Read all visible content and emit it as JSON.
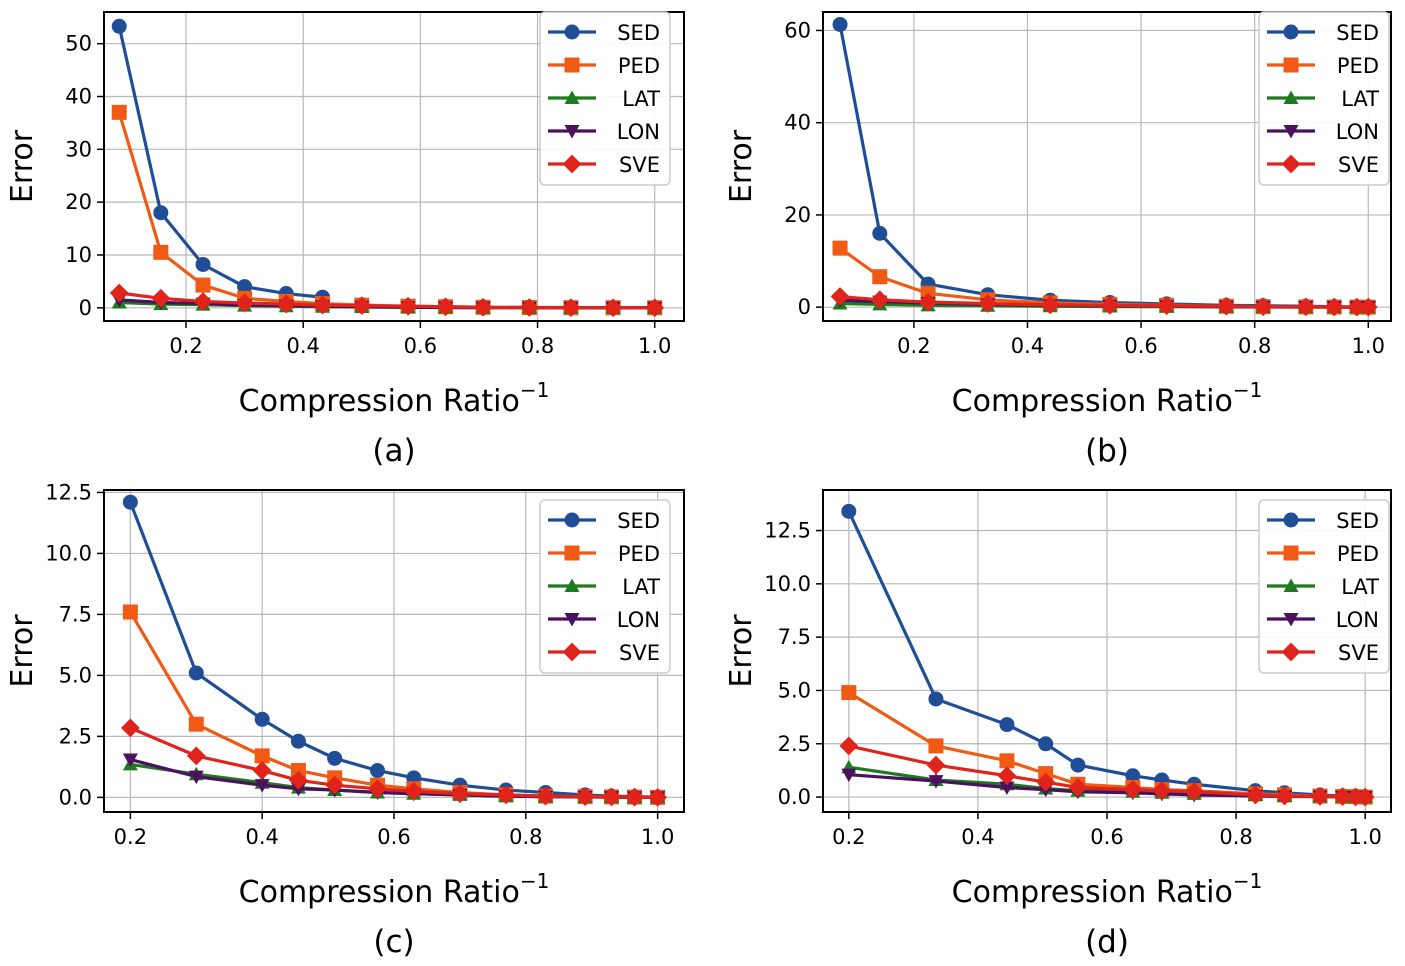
{
  "colors": {
    "SED": "#1f4e96",
    "PED": "#f05a14",
    "LAT": "#1e7a1e",
    "LON": "#4b1060",
    "SVE": "#e0241c"
  },
  "markers": {
    "SED": "circle",
    "PED": "square",
    "LAT": "triangle-up",
    "LON": "triangle-down",
    "SVE": "diamond"
  },
  "chart_data": [
    {
      "type": "line",
      "caption": "(a)",
      "xlabel": "Compression Ratio",
      "xlabel_sup": "−1",
      "ylabel": "Error",
      "xlim": [
        0.06,
        1.05
      ],
      "ylim": [
        -2.5,
        56
      ],
      "xticks": [
        0.2,
        0.4,
        0.6,
        0.8,
        1.0
      ],
      "xtick_labels": [
        "0.2",
        "0.4",
        "0.6",
        "0.8",
        "1.0"
      ],
      "yticks": [
        0,
        10,
        20,
        30,
        40,
        50
      ],
      "ytick_labels": [
        "0",
        "10",
        "20",
        "30",
        "40",
        "50"
      ],
      "grid": true,
      "legend": "top-right",
      "series": [
        {
          "name": "SED",
          "x": [
            0.086,
            0.157,
            0.229,
            0.3,
            0.371,
            0.433
          ],
          "y": [
            53.3,
            18,
            8.2,
            4,
            2.7,
            2
          ]
        },
        {
          "name": "PED",
          "x": [
            0.086,
            0.157,
            0.229,
            0.3,
            0.371,
            0.433,
            0.5,
            0.579,
            0.643,
            0.707,
            0.786,
            0.857,
            0.929,
            1.0
          ],
          "y": [
            37,
            10.5,
            4.3,
            1.8,
            1.2,
            0.8,
            0.5,
            0.3,
            0.2,
            0.1,
            0.05,
            0.03,
            0.02,
            0.01
          ]
        },
        {
          "name": "LAT",
          "x": [
            0.086,
            0.157,
            0.229,
            0.3,
            0.371,
            0.433,
            0.5,
            0.579,
            0.643,
            0.707,
            0.786,
            0.857,
            0.929,
            1.0
          ],
          "y": [
            1.0,
            0.7,
            0.6,
            0.4,
            0.3,
            0.2,
            0.15,
            0.1,
            0.05,
            0.03,
            0.02,
            0.01,
            0.01,
            0
          ]
        },
        {
          "name": "LON",
          "x": [
            0.086,
            0.157,
            0.229,
            0.3,
            0.371,
            0.433,
            0.5,
            0.579,
            0.643,
            0.707,
            0.786,
            0.857,
            0.929,
            1.0
          ],
          "y": [
            1.5,
            1.0,
            0.8,
            0.5,
            0.4,
            0.3,
            0.2,
            0.1,
            0.05,
            0.03,
            0.02,
            0.01,
            0.01,
            0
          ]
        },
        {
          "name": "SVE",
          "x": [
            0.086,
            0.157,
            0.229,
            0.3,
            0.371,
            0.433,
            0.5,
            0.579,
            0.643,
            0.707,
            0.786,
            0.857,
            0.929,
            1.0
          ],
          "y": [
            2.8,
            1.8,
            1.2,
            0.9,
            0.7,
            0.5,
            0.4,
            0.3,
            0.2,
            0.1,
            0.05,
            0.03,
            0.02,
            0.01
          ]
        }
      ]
    },
    {
      "type": "line",
      "caption": "(b)",
      "xlabel": "Compression Ratio",
      "xlabel_sup": "−1",
      "ylabel": "Error",
      "xlim": [
        0.04,
        1.04
      ],
      "ylim": [
        -3,
        64
      ],
      "xticks": [
        0.2,
        0.4,
        0.6,
        0.8,
        1.0
      ],
      "xtick_labels": [
        "0.2",
        "0.4",
        "0.6",
        "0.8",
        "1.0"
      ],
      "yticks": [
        0,
        20,
        40,
        60
      ],
      "ytick_labels": [
        "0",
        "20",
        "40",
        "60"
      ],
      "grid": true,
      "legend": "top-right",
      "series": [
        {
          "name": "SED",
          "x": [
            0.07,
            0.14,
            0.225,
            0.33,
            0.44,
            0.545,
            0.645,
            0.75,
            0.815,
            0.89,
            0.94,
            0.98,
            1.0
          ],
          "y": [
            61.3,
            16,
            5,
            2.7,
            1.5,
            1,
            0.7,
            0.4,
            0.3,
            0.2,
            0.1,
            0.05,
            0
          ]
        },
        {
          "name": "PED",
          "x": [
            0.07,
            0.14,
            0.225,
            0.33,
            0.44,
            0.545,
            0.645,
            0.75,
            0.815,
            0.89,
            0.94,
            0.98,
            1.0
          ],
          "y": [
            12.8,
            6.6,
            3,
            1.6,
            0.9,
            0.6,
            0.4,
            0.2,
            0.1,
            0.05,
            0.03,
            0.02,
            0
          ]
        },
        {
          "name": "LAT",
          "x": [
            0.07,
            0.14,
            0.225,
            0.33,
            0.44,
            0.545,
            0.645,
            0.75,
            0.815,
            0.89,
            0.94,
            0.98,
            1.0
          ],
          "y": [
            0.8,
            0.6,
            0.4,
            0.3,
            0.2,
            0.15,
            0.1,
            0.05,
            0.03,
            0.02,
            0.01,
            0,
            0
          ]
        },
        {
          "name": "LON",
          "x": [
            0.07,
            0.14,
            0.225,
            0.33,
            0.44,
            0.545,
            0.645,
            0.75,
            0.815,
            0.89,
            0.94,
            0.98,
            1.0
          ],
          "y": [
            1.5,
            1.2,
            0.9,
            0.6,
            0.4,
            0.3,
            0.2,
            0.1,
            0.05,
            0.03,
            0.02,
            0.01,
            0
          ]
        },
        {
          "name": "SVE",
          "x": [
            0.07,
            0.14,
            0.225,
            0.33,
            0.44,
            0.545,
            0.645,
            0.75,
            0.815,
            0.89,
            0.94,
            0.98,
            1.0
          ],
          "y": [
            2.3,
            1.6,
            1.1,
            0.8,
            0.5,
            0.4,
            0.3,
            0.2,
            0.1,
            0.05,
            0.03,
            0.02,
            0.01
          ]
        }
      ]
    },
    {
      "type": "line",
      "caption": "(c)",
      "xlabel": "Compression Ratio",
      "xlabel_sup": "−1",
      "ylabel": "Error",
      "xlim": [
        0.16,
        1.04
      ],
      "ylim": [
        -0.6,
        12.6
      ],
      "xticks": [
        0.2,
        0.4,
        0.6,
        0.8,
        1.0
      ],
      "xtick_labels": [
        "0.2",
        "0.4",
        "0.6",
        "0.8",
        "1.0"
      ],
      "yticks": [
        0,
        2.5,
        5,
        7.5,
        10,
        12.5
      ],
      "ytick_labels": [
        "0.0",
        "2.5",
        "5.0",
        "7.5",
        "10.0",
        "12.5"
      ],
      "grid": true,
      "legend": "top-right",
      "series": [
        {
          "name": "SED",
          "x": [
            0.2,
            0.3,
            0.4,
            0.455,
            0.51,
            0.575,
            0.63,
            0.7,
            0.77,
            0.83,
            0.89,
            0.93,
            0.965,
            1.0
          ],
          "y": [
            12.1,
            5.1,
            3.2,
            2.3,
            1.6,
            1.1,
            0.8,
            0.5,
            0.3,
            0.2,
            0.1,
            0.05,
            0.03,
            0.01
          ]
        },
        {
          "name": "PED",
          "x": [
            0.2,
            0.3,
            0.4,
            0.455,
            0.51,
            0.575,
            0.63,
            0.7,
            0.77,
            0.83,
            0.89,
            0.93,
            0.965,
            1.0
          ],
          "y": [
            7.6,
            3.0,
            1.7,
            1.1,
            0.8,
            0.5,
            0.35,
            0.2,
            0.1,
            0.05,
            0.03,
            0.02,
            0.01,
            0
          ]
        },
        {
          "name": "LAT",
          "x": [
            0.2,
            0.3,
            0.4,
            0.455,
            0.51,
            0.575,
            0.63,
            0.7,
            0.77,
            0.83,
            0.89,
            0.93,
            0.965,
            1.0
          ],
          "y": [
            1.35,
            0.95,
            0.6,
            0.4,
            0.3,
            0.2,
            0.15,
            0.1,
            0.05,
            0.03,
            0.02,
            0.01,
            0,
            0
          ]
        },
        {
          "name": "LON",
          "x": [
            0.2,
            0.3,
            0.4,
            0.455,
            0.51,
            0.575,
            0.63,
            0.7,
            0.77,
            0.83,
            0.89,
            0.93,
            0.965,
            1.0
          ],
          "y": [
            1.55,
            0.85,
            0.5,
            0.35,
            0.3,
            0.2,
            0.15,
            0.1,
            0.05,
            0.03,
            0.02,
            0.01,
            0,
            0
          ]
        },
        {
          "name": "SVE",
          "x": [
            0.2,
            0.3,
            0.4,
            0.455,
            0.51,
            0.575,
            0.63,
            0.7,
            0.77,
            0.83,
            0.89,
            0.93,
            0.965,
            1.0
          ],
          "y": [
            2.85,
            1.7,
            1.1,
            0.7,
            0.5,
            0.35,
            0.25,
            0.15,
            0.1,
            0.05,
            0.03,
            0.02,
            0.01,
            0
          ]
        }
      ]
    },
    {
      "type": "line",
      "caption": "(d)",
      "xlabel": "Compression Ratio",
      "xlabel_sup": "−1",
      "ylabel": "Error",
      "xlim": [
        0.16,
        1.04
      ],
      "ylim": [
        -0.7,
        14.4
      ],
      "xticks": [
        0.2,
        0.4,
        0.6,
        0.8,
        1.0
      ],
      "xtick_labels": [
        "0.2",
        "0.4",
        "0.6",
        "0.8",
        "1.0"
      ],
      "yticks": [
        0,
        2.5,
        5,
        7.5,
        10,
        12.5
      ],
      "ytick_labels": [
        "0.0",
        "2.5",
        "5.0",
        "7.5",
        "10.0",
        "12.5"
      ],
      "grid": true,
      "legend": "top-right",
      "series": [
        {
          "name": "SED",
          "x": [
            0.2,
            0.335,
            0.445,
            0.505,
            0.555,
            0.64,
            0.685,
            0.735,
            0.83,
            0.875,
            0.93,
            0.965,
            0.985,
            1.0
          ],
          "y": [
            13.4,
            4.6,
            3.4,
            2.5,
            1.5,
            1.0,
            0.8,
            0.6,
            0.3,
            0.2,
            0.1,
            0.05,
            0.03,
            0.01
          ]
        },
        {
          "name": "PED",
          "x": [
            0.2,
            0.335,
            0.445,
            0.505,
            0.555,
            0.64,
            0.685,
            0.735,
            0.83,
            0.875,
            0.93,
            0.965,
            0.985,
            1.0
          ],
          "y": [
            4.9,
            2.4,
            1.7,
            1.1,
            0.6,
            0.45,
            0.35,
            0.3,
            0.15,
            0.1,
            0.05,
            0.03,
            0.02,
            0
          ]
        },
        {
          "name": "LAT",
          "x": [
            0.2,
            0.335,
            0.445,
            0.505,
            0.555,
            0.64,
            0.685,
            0.735,
            0.83,
            0.875,
            0.93,
            0.965,
            0.985,
            1.0
          ],
          "y": [
            1.4,
            0.8,
            0.6,
            0.4,
            0.3,
            0.25,
            0.2,
            0.15,
            0.1,
            0.05,
            0.03,
            0.02,
            0.01,
            0
          ]
        },
        {
          "name": "LON",
          "x": [
            0.2,
            0.335,
            0.445,
            0.505,
            0.555,
            0.64,
            0.685,
            0.735,
            0.83,
            0.875,
            0.93,
            0.965,
            0.985,
            1.0
          ],
          "y": [
            1.05,
            0.75,
            0.45,
            0.35,
            0.25,
            0.2,
            0.15,
            0.1,
            0.05,
            0.03,
            0.02,
            0.01,
            0,
            0
          ]
        },
        {
          "name": "SVE",
          "x": [
            0.2,
            0.335,
            0.445,
            0.505,
            0.555,
            0.64,
            0.685,
            0.735,
            0.83,
            0.875,
            0.93,
            0.965,
            0.985,
            1.0
          ],
          "y": [
            2.4,
            1.5,
            1.0,
            0.7,
            0.45,
            0.35,
            0.3,
            0.25,
            0.1,
            0.05,
            0.03,
            0.02,
            0.01,
            0
          ]
        }
      ]
    }
  ]
}
